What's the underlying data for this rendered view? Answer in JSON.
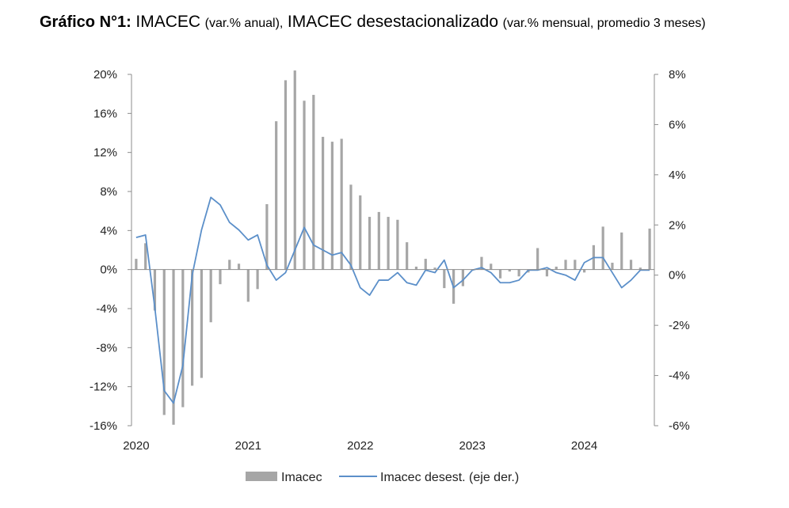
{
  "title": {
    "prefix": "Gráfico N°1:",
    "part1": "IMACEC",
    "part1_note": "(var.% anual),",
    "part2": "IMACEC desestacionalizado",
    "part2_note": "(var.% mensual, promedio 3 meses)"
  },
  "chart_data": {
    "type": "bar+line",
    "title": "Gráfico N°1: IMACEC (var.% anual), IMACEC desestacionalizado (var.% mensual, promedio 3 meses)",
    "x_start": "2020-01",
    "x_labels": [
      "2020",
      "2021",
      "2022",
      "2023",
      "2024"
    ],
    "y_left": {
      "min": -16,
      "max": 20,
      "step": 4,
      "ticks": [
        "-16%",
        "-12%",
        "-8%",
        "-4%",
        "0%",
        "4%",
        "8%",
        "12%",
        "16%",
        "20%"
      ]
    },
    "y_right": {
      "min": -6,
      "max": 8,
      "step": 2,
      "ticks": [
        "-6%",
        "-4%",
        "-2%",
        "0%",
        "2%",
        "4%",
        "6%",
        "8%"
      ]
    },
    "series": [
      {
        "name": "Imacec",
        "kind": "bar",
        "axis": "left",
        "color": "#a6a6a6",
        "values": [
          1.1,
          2.7,
          -4.2,
          -14.9,
          -15.9,
          -14.1,
          -11.9,
          -11.1,
          -5.4,
          -1.5,
          1.0,
          0.6,
          -3.3,
          -2.0,
          6.7,
          15.2,
          19.4,
          20.4,
          17.3,
          17.9,
          13.6,
          13.1,
          13.4,
          8.7,
          7.6,
          5.4,
          5.9,
          5.4,
          5.1,
          2.8,
          0.3,
          1.1,
          0.2,
          -1.9,
          -3.5,
          -1.7,
          0.0,
          1.3,
          0.6,
          -0.9,
          -0.2,
          -0.7,
          -0.3,
          2.2,
          -0.7,
          0.3,
          1.0,
          1.0,
          -0.3,
          2.5,
          4.4,
          0.7,
          3.8,
          1.0,
          0.2,
          4.2
        ]
      },
      {
        "name": "Imacec desest. (eje der.)",
        "kind": "line",
        "axis": "right",
        "color": "#5b8fc9",
        "values": [
          1.5,
          1.6,
          -1.3,
          -4.6,
          -5.1,
          -3.6,
          0.0,
          1.8,
          3.1,
          2.8,
          2.1,
          1.8,
          1.4,
          1.6,
          0.4,
          -0.2,
          0.1,
          1.0,
          1.9,
          1.2,
          1.0,
          0.8,
          0.9,
          0.4,
          -0.5,
          -0.8,
          -0.2,
          -0.2,
          0.1,
          -0.3,
          -0.4,
          0.2,
          0.1,
          0.6,
          -0.5,
          -0.2,
          0.2,
          0.3,
          0.1,
          -0.3,
          -0.3,
          -0.2,
          0.2,
          0.2,
          0.3,
          0.1,
          0.0,
          -0.2,
          0.5,
          0.7,
          0.7,
          0.1,
          -0.5,
          -0.2,
          0.2,
          0.2
        ]
      }
    ]
  },
  "legend": {
    "bar_label": "Imacec",
    "line_label": "Imacec desest. (eje der.)"
  }
}
